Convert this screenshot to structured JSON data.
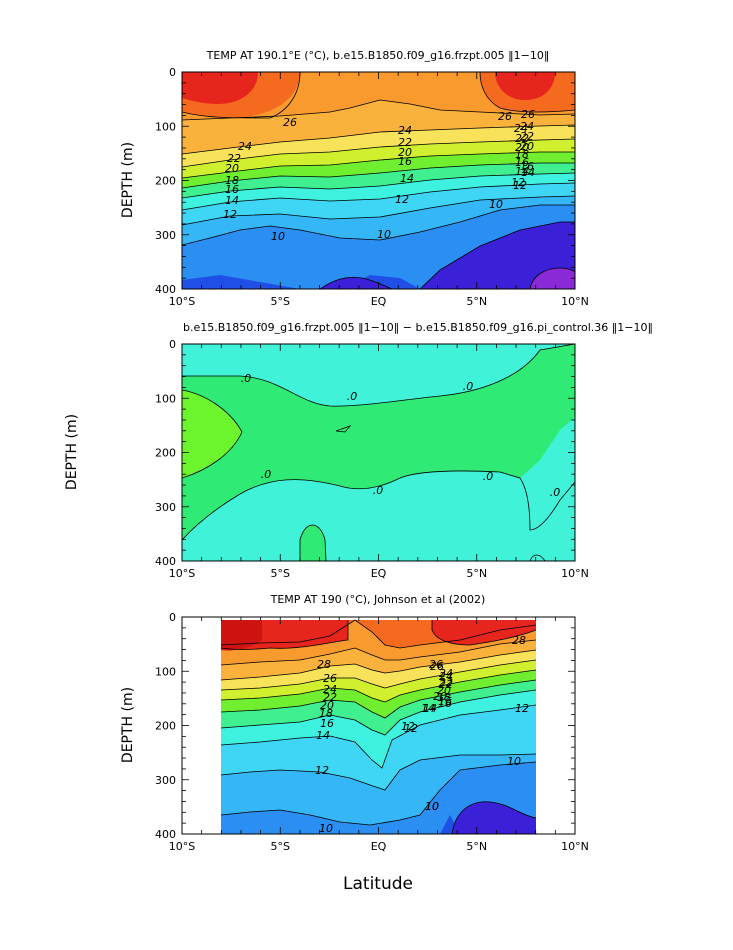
{
  "figure": {
    "xlabel": "Latitude"
  },
  "chart_data": [
    {
      "type": "heatmap",
      "title": "TEMP AT 190.1°E (°C), b.e15.B1850.f09_g16.frzpt.005 ‖1−10‖",
      "ylabel": "DEPTH (m)",
      "xlim": [
        -10,
        10
      ],
      "ylim": [
        400,
        0
      ],
      "x_ticks": [
        "10°S",
        "5°S",
        "EQ",
        "5°N",
        "10°N"
      ],
      "y_ticks": [
        "0",
        "100",
        "200",
        "300",
        "400"
      ],
      "contour_levels": [
        10,
        12,
        14,
        16,
        18,
        20,
        22,
        24,
        26
      ],
      "contour_labels": [
        "26",
        "24",
        "22",
        "20",
        "18",
        "16",
        "14",
        "12",
        "10",
        "26",
        "24",
        "22",
        "20",
        "18",
        "16",
        "14",
        "12",
        "10",
        "24",
        "22",
        "20",
        "16",
        "14",
        "12",
        "10",
        "26",
        "24",
        "22",
        "20",
        "16",
        "14",
        "12"
      ],
      "isotherms": [
        {
          "level": 28,
          "depths": [
            0,
            0,
            0,
            0,
            0,
            0,
            0,
            0,
            0
          ]
        },
        {
          "level": 26,
          "depths": [
            95,
            92,
            90,
            88,
            70,
            86,
            88,
            90,
            95
          ]
        },
        {
          "level": 24,
          "depths": [
            130,
            127,
            122,
            110,
            100,
            104,
            110,
            115,
            118
          ]
        },
        {
          "level": 22,
          "depths": [
            150,
            148,
            145,
            135,
            125,
            128,
            130,
            133,
            135
          ]
        },
        {
          "level": 20,
          "depths": [
            168,
            165,
            160,
            150,
            142,
            143,
            145,
            148,
            150
          ]
        },
        {
          "level": 18,
          "depths": [
            180,
            178,
            172,
            165,
            158,
            158,
            160,
            162,
            163
          ]
        },
        {
          "level": 16,
          "depths": [
            195,
            193,
            188,
            180,
            173,
            172,
            173,
            175,
            176
          ]
        },
        {
          "level": 14,
          "depths": [
            215,
            210,
            205,
            198,
            190,
            188,
            188,
            190,
            192
          ]
        },
        {
          "level": 12,
          "depths": [
            245,
            238,
            230,
            222,
            215,
            212,
            212,
            215,
            218
          ]
        },
        {
          "level": 10,
          "depths": [
            290,
            280,
            265,
            258,
            250,
            245,
            240,
            235,
            230
          ]
        },
        {
          "level": 8,
          "depths": [
            400,
            400,
            370,
            380,
            390,
            360,
            320,
            290,
            270
          ]
        }
      ]
    },
    {
      "type": "heatmap",
      "title": "b.e15.B1850.f09_g16.frzpt.005 ‖1−10‖ − b.e15.B1850.f09_g16.pi_control.36 ‖1−10‖",
      "ylabel": "DEPTH (m)",
      "xlim": [
        -10,
        10
      ],
      "ylim": [
        400,
        0
      ],
      "x_ticks": [
        "10°S",
        "5°S",
        "EQ",
        "5°N",
        "10°N"
      ],
      "y_ticks": [
        "0",
        "100",
        "200",
        "300",
        "400"
      ],
      "contour_labels": [
        ".0",
        ".0",
        ".0",
        ".0",
        ".0",
        ".0",
        ".0"
      ]
    },
    {
      "type": "heatmap",
      "title": "TEMP AT 190 (°C), Johnson et al (2002)",
      "ylabel": "DEPTH (m)",
      "xlim": [
        -10,
        10
      ],
      "ylim": [
        400,
        0
      ],
      "x_ticks": [
        "10°S",
        "5°S",
        "EQ",
        "5°N",
        "10°N"
      ],
      "y_ticks": [
        "0",
        "100",
        "200",
        "300",
        "400"
      ],
      "data_xlim": [
        -8,
        8
      ],
      "data_ylim": [
        10,
        400
      ],
      "contour_labels": [
        "28",
        "26",
        "24",
        "22",
        "20",
        "18",
        "16",
        "14",
        "12",
        "10",
        "28",
        "26",
        "24",
        "22",
        "20",
        "18",
        "16",
        "14",
        "12",
        "10",
        "10",
        "26",
        "24",
        "22",
        "20",
        "16",
        "14",
        "12",
        "10",
        "12"
      ],
      "isotherms": [
        {
          "level": 28,
          "depths": [
            80,
            78,
            76,
            70,
            50,
            60,
            72,
            68,
            62
          ]
        },
        {
          "level": 26,
          "depths": [
            105,
            102,
            100,
            88,
            65,
            78,
            85,
            80,
            76
          ]
        },
        {
          "level": 24,
          "depths": [
            128,
            126,
            122,
            108,
            82,
            96,
            104,
            98,
            92
          ]
        },
        {
          "level": 22,
          "depths": [
            145,
            142,
            138,
            123,
            95,
            110,
            118,
            112,
            105
          ]
        },
        {
          "level": 20,
          "depths": [
            162,
            160,
            155,
            140,
            110,
            125,
            133,
            126,
            118
          ]
        },
        {
          "level": 18,
          "depths": [
            178,
            176,
            170,
            155,
            125,
            140,
            148,
            141,
            132
          ]
        },
        {
          "level": 16,
          "depths": [
            195,
            192,
            186,
            170,
            140,
            155,
            163,
            156,
            146
          ]
        },
        {
          "level": 14,
          "depths": [
            212,
            210,
            203,
            188,
            160,
            172,
            178,
            170,
            160
          ]
        },
        {
          "level": 12,
          "depths": [
            238,
            234,
            226,
            215,
            210,
            195,
            196,
            188,
            178
          ]
        },
        {
          "level": 10,
          "depths": [
            300,
            290,
            280,
            270,
            275,
            255,
            240,
            232,
            225
          ]
        },
        {
          "level": 8,
          "depths": [
            400,
            395,
            390,
            385,
            390,
            390,
            335,
            300,
            290
          ]
        }
      ]
    }
  ]
}
